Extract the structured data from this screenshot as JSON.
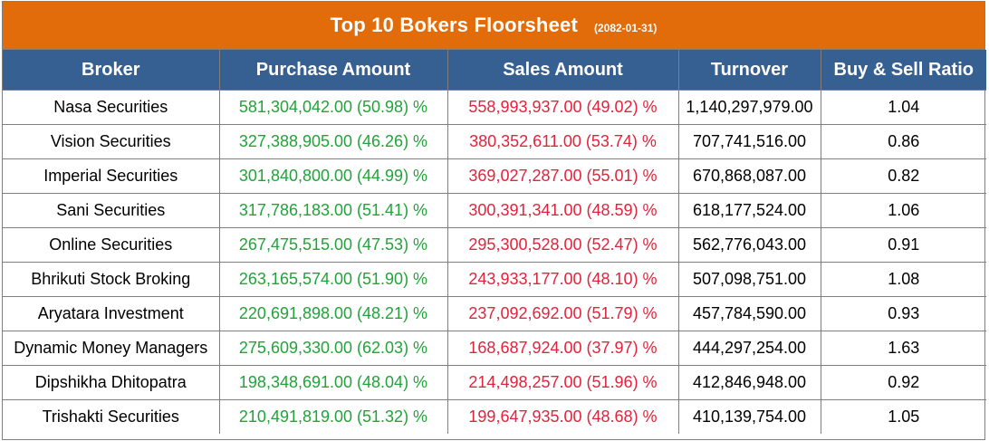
{
  "header": {
    "title": "Top 10 Bokers Floorsheet",
    "date": "(2082-01-31)"
  },
  "columns": {
    "broker": "Broker",
    "purchase": "Purchase Amount",
    "sales": "Sales Amount",
    "turnover": "Turnover",
    "ratio": "Buy & Sell Ratio"
  },
  "colors": {
    "title_bg": "#e26b0a",
    "header_bg": "#366092",
    "purchase_text": "#22a33a",
    "sales_text": "#e0243c"
  },
  "rows": [
    {
      "broker": "Nasa Securities",
      "purchase": "581,304,042.00 (50.98) %",
      "sales": "558,993,937.00 (49.02) %",
      "turnover": "1,140,297,979.00",
      "ratio": "1.04"
    },
    {
      "broker": "Vision Securities",
      "purchase": "327,388,905.00 (46.26) %",
      "sales": "380,352,611.00 (53.74) %",
      "turnover": "707,741,516.00",
      "ratio": "0.86"
    },
    {
      "broker": "Imperial Securities",
      "purchase": "301,840,800.00 (44.99) %",
      "sales": "369,027,287.00 (55.01) %",
      "turnover": "670,868,087.00",
      "ratio": "0.82"
    },
    {
      "broker": "Sani Securities",
      "purchase": "317,786,183.00 (51.41) %",
      "sales": "300,391,341.00 (48.59) %",
      "turnover": "618,177,524.00",
      "ratio": "1.06"
    },
    {
      "broker": "Online Securities",
      "purchase": "267,475,515.00 (47.53) %",
      "sales": "295,300,528.00 (52.47) %",
      "turnover": "562,776,043.00",
      "ratio": "0.91"
    },
    {
      "broker": "Bhrikuti Stock Broking",
      "purchase": "263,165,574.00 (51.90) %",
      "sales": "243,933,177.00 (48.10) %",
      "turnover": "507,098,751.00",
      "ratio": "1.08"
    },
    {
      "broker": "Aryatara Investment",
      "purchase": "220,691,898.00 (48.21) %",
      "sales": "237,092,692.00 (51.79) %",
      "turnover": "457,784,590.00",
      "ratio": "0.93"
    },
    {
      "broker": "Dynamic Money Managers",
      "purchase": "275,609,330.00 (62.03) %",
      "sales": "168,687,924.00 (37.97) %",
      "turnover": "444,297,254.00",
      "ratio": "1.63"
    },
    {
      "broker": "Dipshikha Dhitopatra",
      "purchase": "198,348,691.00 (48.04) %",
      "sales": "214,498,257.00 (51.96) %",
      "turnover": "412,846,948.00",
      "ratio": "0.92"
    },
    {
      "broker": "Trishakti Securities",
      "purchase": "210,491,819.00 (51.32) %",
      "sales": "199,647,935.00 (48.68) %",
      "turnover": "410,139,754.00",
      "ratio": "1.05"
    }
  ]
}
